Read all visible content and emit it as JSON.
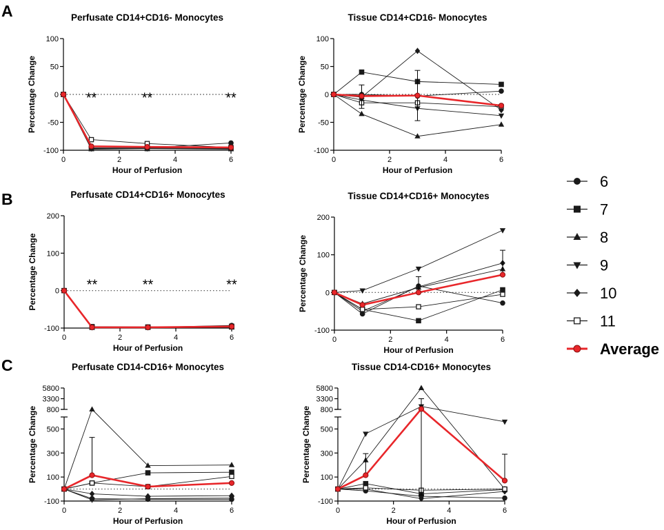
{
  "panel_labels": [
    "A",
    "B",
    "C"
  ],
  "legend": {
    "entries": [
      {
        "label": "6",
        "marker": "circle"
      },
      {
        "label": "7",
        "marker": "square"
      },
      {
        "label": "8",
        "marker": "triangle-up"
      },
      {
        "label": "9",
        "marker": "triangle-down"
      },
      {
        "label": "10",
        "marker": "diamond"
      },
      {
        "label": "11",
        "marker": "open-square"
      },
      {
        "label": "Average",
        "marker": "red-circle"
      }
    ]
  },
  "colors": {
    "subject": "#1a1a1a",
    "average": "#e8262a",
    "average_fill": "#e8262a",
    "reference": "#444444"
  },
  "chart_data": [
    {
      "type": "line",
      "panel": "A",
      "title": "Perfusate CD14+CD16- Monocytes",
      "xlabel": "Hour of Perfusion",
      "ylabel": "Percentage Change",
      "x": [
        0,
        1,
        3,
        6
      ],
      "xticks": [
        0,
        2,
        4,
        6
      ],
      "xlim": [
        0,
        6
      ],
      "ylim": [
        -100,
        100
      ],
      "yticks": [
        -100,
        -50,
        0,
        50,
        100
      ],
      "reference_line": 0,
      "annotations": [
        {
          "x": 1,
          "text": "**"
        },
        {
          "x": 3,
          "text": "**"
        },
        {
          "x": 6,
          "text": "**"
        }
      ],
      "series": [
        {
          "name": "6",
          "values": [
            0,
            -96,
            -96,
            -87
          ]
        },
        {
          "name": "7",
          "values": [
            0,
            -97,
            -97,
            -97
          ]
        },
        {
          "name": "8",
          "values": [
            0,
            -98,
            -97,
            -98
          ]
        },
        {
          "name": "9",
          "values": [
            0,
            -96,
            -97,
            -97
          ]
        },
        {
          "name": "10",
          "values": [
            0,
            -97,
            -96,
            -96
          ]
        },
        {
          "name": "11",
          "values": [
            0,
            -81,
            -88,
            -95
          ]
        },
        {
          "name": "Average",
          "values": [
            0,
            -93,
            -94,
            -95
          ],
          "err_up": [
            0,
            0,
            0,
            0
          ]
        }
      ]
    },
    {
      "type": "line",
      "panel": "A",
      "title": "Tissue CD14+CD16- Monocytes",
      "xlabel": "Hour of Perfusion",
      "ylabel": "Percentage Change",
      "x": [
        0,
        1,
        3,
        6
      ],
      "xticks": [
        0,
        2,
        4,
        6
      ],
      "xlim": [
        0,
        6
      ],
      "ylim": [
        -100,
        100
      ],
      "yticks": [
        -100,
        -50,
        0,
        50,
        100
      ],
      "reference_line": 0,
      "series": [
        {
          "name": "6",
          "values": [
            0,
            0,
            -3,
            6
          ]
        },
        {
          "name": "7",
          "values": [
            0,
            40,
            23,
            18
          ]
        },
        {
          "name": "8",
          "values": [
            0,
            -35,
            -75,
            -54
          ]
        },
        {
          "name": "9",
          "values": [
            0,
            -10,
            -25,
            -38
          ]
        },
        {
          "name": "10",
          "values": [
            0,
            -5,
            78,
            -28
          ]
        },
        {
          "name": "11",
          "values": [
            0,
            -15,
            -15,
            -22
          ]
        },
        {
          "name": "Average",
          "values": [
            0,
            -3,
            -2,
            -20
          ],
          "err_up": [
            0,
            20,
            45,
            0
          ],
          "err_down": [
            0,
            22,
            45,
            0
          ]
        }
      ]
    },
    {
      "type": "line",
      "panel": "B",
      "title": "Perfusate CD14+CD16+ Monocytes",
      "xlabel": "Hour of Perfusion",
      "ylabel": "Percentage Change",
      "x": [
        0,
        1,
        3,
        6
      ],
      "xticks": [
        0,
        2,
        4,
        6
      ],
      "xlim": [
        0,
        6
      ],
      "ylim": [
        -100,
        200
      ],
      "yticks": [
        -100,
        0,
        100,
        200
      ],
      "reference_line": 0,
      "annotations": [
        {
          "x": 1,
          "text": "**"
        },
        {
          "x": 3,
          "text": "**"
        },
        {
          "x": 6,
          "text": "**"
        }
      ],
      "series": [
        {
          "name": "6",
          "values": [
            0,
            -97,
            -98,
            -93
          ]
        },
        {
          "name": "7",
          "values": [
            0,
            -98,
            -98,
            -97
          ]
        },
        {
          "name": "8",
          "values": [
            0,
            -99,
            -98,
            -98
          ]
        },
        {
          "name": "9",
          "values": [
            0,
            -98,
            -98,
            -97
          ]
        },
        {
          "name": "10",
          "values": [
            0,
            -98,
            -98,
            -96
          ]
        },
        {
          "name": "11",
          "values": [
            0,
            -96,
            -97,
            -95
          ]
        },
        {
          "name": "Average",
          "values": [
            0,
            -98,
            -98,
            -96
          ]
        }
      ]
    },
    {
      "type": "line",
      "panel": "B",
      "title": "Tissue CD14+CD16+ Monocytes",
      "xlabel": "Hour of Perfusion",
      "ylabel": "Percentage Change",
      "x": [
        0,
        1,
        3,
        6
      ],
      "xticks": [
        0,
        2,
        4,
        6
      ],
      "xlim": [
        0,
        6
      ],
      "ylim": [
        -100,
        200
      ],
      "yticks": [
        -100,
        0,
        100,
        200
      ],
      "reference_line": 0,
      "series": [
        {
          "name": "6",
          "values": [
            0,
            -57,
            17,
            -28
          ]
        },
        {
          "name": "7",
          "values": [
            0,
            -45,
            -75,
            7
          ]
        },
        {
          "name": "8",
          "values": [
            0,
            -30,
            13,
            62
          ]
        },
        {
          "name": "9",
          "values": [
            0,
            5,
            63,
            165
          ]
        },
        {
          "name": "10",
          "values": [
            0,
            -50,
            15,
            78
          ]
        },
        {
          "name": "11",
          "values": [
            0,
            -45,
            -38,
            -5
          ]
        },
        {
          "name": "Average",
          "values": [
            0,
            -33,
            0,
            47
          ],
          "err_up": [
            0,
            0,
            42,
            65
          ],
          "err_down": [
            0,
            0,
            0,
            0
          ]
        }
      ]
    },
    {
      "type": "line",
      "panel": "C",
      "title": "Perfusate CD14-CD16+ Monocytes",
      "xlabel": "Hour of Perfusion",
      "ylabel": "Percentage Change",
      "x": [
        0,
        1,
        3,
        6
      ],
      "xticks": [
        0,
        2,
        4,
        6
      ],
      "xlim": [
        0,
        6
      ],
      "ylim": [
        -100,
        5800
      ],
      "yticks": [
        -100,
        100,
        300,
        500,
        800,
        3300,
        5800
      ],
      "axis_break": {
        "lower": [
          -100,
          600
        ],
        "upper": [
          800,
          5800
        ]
      },
      "reference_line": 0,
      "series": [
        {
          "name": "6",
          "values": [
            0,
            -80,
            -85,
            -85
          ]
        },
        {
          "name": "7",
          "values": [
            0,
            50,
            135,
            140
          ]
        },
        {
          "name": "8",
          "values": [
            0,
            800,
            195,
            200
          ]
        },
        {
          "name": "9",
          "values": [
            0,
            -90,
            -80,
            -75
          ]
        },
        {
          "name": "10",
          "values": [
            0,
            -40,
            -60,
            -55
          ]
        },
        {
          "name": "11",
          "values": [
            0,
            50,
            20,
            105
          ]
        },
        {
          "name": "Average",
          "values": [
            0,
            115,
            20,
            50
          ],
          "err_up": [
            0,
            315,
            0,
            0
          ]
        }
      ]
    },
    {
      "type": "line",
      "panel": "C",
      "title": "Tissue CD14-CD16+ Monocytes",
      "xlabel": "Hour of Perfusion",
      "ylabel": "Percentage Change",
      "x": [
        0,
        1,
        3,
        6
      ],
      "xticks": [
        0,
        2,
        4,
        6
      ],
      "xlim": [
        0,
        6
      ],
      "ylim": [
        -100,
        5800
      ],
      "yticks": [
        -100,
        100,
        300,
        500,
        800,
        3300,
        5800
      ],
      "axis_break": {
        "lower": [
          -100,
          600
        ],
        "upper": [
          800,
          5800
        ]
      },
      "reference_line": 0,
      "series": [
        {
          "name": "6",
          "values": [
            0,
            -15,
            -60,
            -75
          ]
        },
        {
          "name": "7",
          "values": [
            0,
            45,
            -40,
            -5
          ]
        },
        {
          "name": "8",
          "values": [
            0,
            240,
            5800,
            0
          ]
        },
        {
          "name": "9",
          "values": [
            0,
            460,
            1500,
            560
          ]
        },
        {
          "name": "10",
          "values": [
            0,
            0,
            -80,
            -20
          ]
        },
        {
          "name": "11",
          "values": [
            0,
            10,
            -10,
            0
          ]
        },
        {
          "name": "Average",
          "values": [
            0,
            115,
            900,
            70
          ],
          "err_up": [
            0,
            180,
            2400,
            220
          ],
          "err_down": [
            0,
            0,
            950,
            0
          ]
        }
      ]
    }
  ]
}
